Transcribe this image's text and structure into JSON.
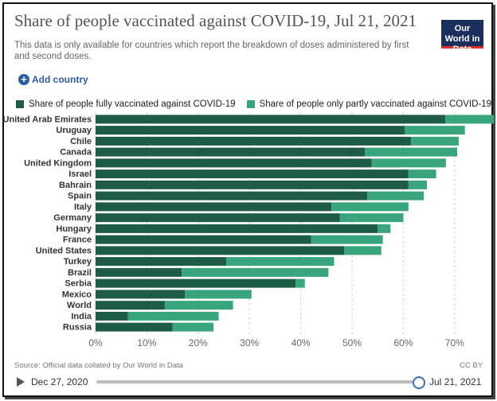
{
  "header": {
    "title": "Share of people vaccinated against COVID-19, Jul 21, 2021",
    "subtitle": "This data is only available for countries which report the breakdown of doses administered by first and second doses.",
    "logo_text": "Our World in Data"
  },
  "controls": {
    "add_country_label": "Add country",
    "add_icon": "+"
  },
  "footer": {
    "source": "Source: Official data collated by Our World in Data",
    "license": "CC BY"
  },
  "timeline": {
    "start_date": "Dec 27, 2020",
    "end_date": "Jul 21, 2021",
    "position": 1.0
  },
  "colors": {
    "fully": "#1e5c46",
    "partly": "#38a57d"
  },
  "chart_data": {
    "type": "bar",
    "orientation": "horizontal",
    "stacked": true,
    "categories": [
      "United Arab Emirates",
      "Uruguay",
      "Chile",
      "Canada",
      "United Kingdom",
      "Israel",
      "Bahrain",
      "Spain",
      "Italy",
      "Germany",
      "Hungary",
      "France",
      "United States",
      "Turkey",
      "Brazil",
      "Serbia",
      "Mexico",
      "World",
      "India",
      "Russia"
    ],
    "series": [
      {
        "name": "Share of people fully vaccinated against COVID-19",
        "color": "#1e5c46",
        "values": [
          68.2,
          60.3,
          61.5,
          52.5,
          53.8,
          61.0,
          61.0,
          53.0,
          46.0,
          47.6,
          55.0,
          42.0,
          48.5,
          25.5,
          16.8,
          39.0,
          17.4,
          13.5,
          6.3,
          15.0
        ]
      },
      {
        "name": "Share of people only partly vaccinated against COVID-19",
        "color": "#38a57d",
        "values": [
          9.5,
          11.7,
          9.3,
          18.0,
          14.5,
          5.4,
          3.6,
          11.0,
          15.0,
          12.4,
          2.5,
          14.0,
          7.2,
          21.0,
          28.6,
          1.8,
          13.0,
          13.3,
          17.7,
          8.0
        ]
      }
    ],
    "xlim": [
      0,
      75
    ],
    "xticks": [
      0,
      10,
      20,
      30,
      40,
      50,
      60,
      70
    ],
    "xtick_labels": [
      "0%",
      "10%",
      "20%",
      "30%",
      "40%",
      "50%",
      "60%",
      "70%"
    ],
    "grid": true,
    "legend_position": "top"
  }
}
